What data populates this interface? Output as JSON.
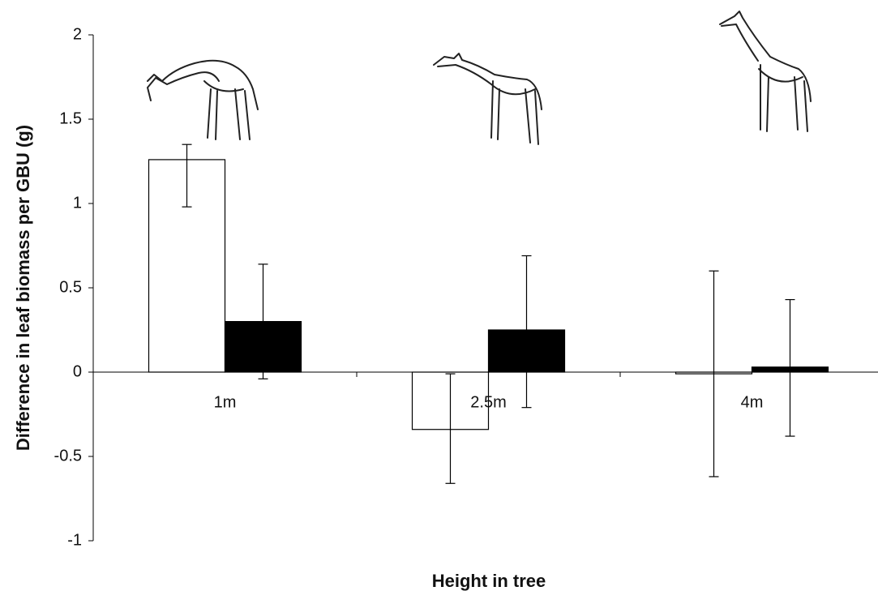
{
  "chart_data": {
    "type": "bar",
    "y_label": "Difference in leaf biomass per GBU (g)",
    "x_label": "Height in tree",
    "categories": [
      "1m",
      "2.5m",
      "4m"
    ],
    "series": [
      {
        "color": "#ffffff",
        "values": [
          1.26,
          -0.34,
          -0.01
        ],
        "errors": [
          [
            0.98,
            1.35
          ],
          [
            -0.66,
            -0.01
          ],
          [
            -0.62,
            0.6
          ]
        ]
      },
      {
        "color": "#000000",
        "values": [
          0.3,
          0.25,
          0.03
        ],
        "errors": [
          [
            -0.04,
            0.64
          ],
          [
            -0.21,
            0.69
          ],
          [
            -0.38,
            0.43
          ]
        ]
      }
    ],
    "ylim": [
      -1,
      2
    ],
    "yticks": [
      -1,
      -0.5,
      0,
      0.5,
      1,
      1.5,
      2
    ]
  }
}
